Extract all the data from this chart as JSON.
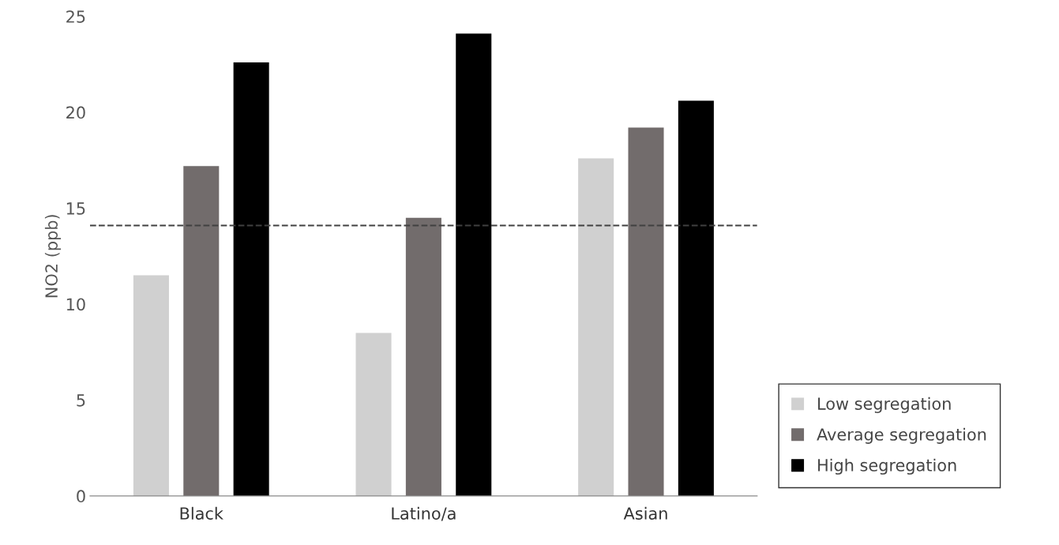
{
  "chart_data": {
    "type": "bar",
    "ylabel": "NO2 (ppb)",
    "categories": [
      "Black",
      "Latino/a",
      "Asian"
    ],
    "series": [
      {
        "name": "Low segregation",
        "color": "#d0d0d0",
        "values": [
          11.5,
          8.5,
          17.6
        ]
      },
      {
        "name": "Average segregation",
        "color": "#726c6c",
        "values": [
          17.2,
          14.5,
          19.2
        ]
      },
      {
        "name": "High segregation",
        "color": "#000000",
        "values": [
          22.6,
          24.1,
          20.6
        ]
      }
    ],
    "ylim": [
      0,
      25
    ],
    "yticks": [
      0,
      5,
      10,
      15,
      20,
      25
    ],
    "ref_lines": [
      {
        "axis": "y",
        "value": 14.1,
        "color": "#404040",
        "line_style": "dashed"
      }
    ],
    "grid": false,
    "legend": "bottom right"
  }
}
